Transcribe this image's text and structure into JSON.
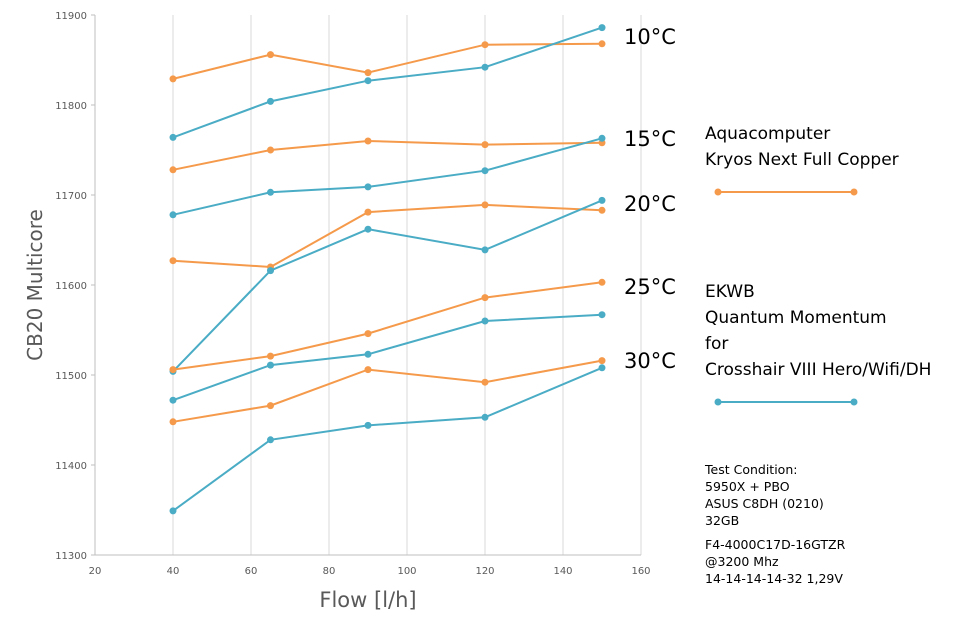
{
  "chart_data": {
    "type": "line",
    "title": "",
    "xlabel": "Flow [l/h]",
    "ylabel": "CB20 Multicore",
    "xlim": [
      20,
      160
    ],
    "ylim": [
      11300,
      11900
    ],
    "x_ticks": [
      "20",
      "40",
      "60",
      "80",
      "100",
      "120",
      "140",
      "160"
    ],
    "y_ticks": [
      "11300",
      "11400",
      "11500",
      "11600",
      "11700",
      "11800",
      "11900"
    ],
    "grid": "vertical",
    "x": [
      40,
      65,
      90,
      120,
      150
    ],
    "colors": {
      "aquacomputer": "#F59A4B",
      "ekwb": "#4AACC5"
    },
    "series": [
      {
        "name": "Aquacomputer 10°C",
        "group": "aquacomputer",
        "values": [
          11829,
          11856,
          11836,
          11867,
          11868
        ]
      },
      {
        "name": "EKWB 10°C",
        "group": "ekwb",
        "values": [
          11764,
          11804,
          11827,
          11842,
          11886
        ]
      },
      {
        "name": "Aquacomputer 15°C",
        "group": "aquacomputer",
        "values": [
          11728,
          11750,
          11760,
          11756,
          11758
        ]
      },
      {
        "name": "EKWB 15°C",
        "group": "ekwb",
        "values": [
          11678,
          11703,
          11709,
          11727,
          11763
        ]
      },
      {
        "name": "Aquacomputer 20°C",
        "group": "aquacomputer",
        "values": [
          11627,
          11620,
          11681,
          11689,
          11683
        ]
      },
      {
        "name": "EKWB 20°C",
        "group": "ekwb",
        "values": [
          11504,
          11616,
          11662,
          11639,
          11694
        ]
      },
      {
        "name": "Aquacomputer 25°C",
        "group": "aquacomputer",
        "values": [
          11506,
          11521,
          11546,
          11586,
          11603
        ]
      },
      {
        "name": "EKWB 25°C",
        "group": "ekwb",
        "values": [
          11472,
          11511,
          11523,
          11560,
          11567
        ]
      },
      {
        "name": "Aquacomputer 30°C",
        "group": "aquacomputer",
        "values": [
          11448,
          11466,
          11506,
          11492,
          11516
        ]
      },
      {
        "name": "EKWB 30°C",
        "group": "ekwb",
        "values": [
          11349,
          11428,
          11444,
          11453,
          11508
        ]
      }
    ],
    "annotations": {
      "temps": [
        "10°C",
        "15°C",
        "20°C",
        "25°C",
        "30°C"
      ],
      "legend_aqua": [
        "Aquacomputer",
        "Kryos Next Full Copper"
      ],
      "legend_ekwb": [
        "EKWB",
        "Quantum Momentum",
        "for",
        "Crosshair VIII Hero/Wifi/DH"
      ],
      "test_condition": [
        "Test Condition:",
        "5950X + PBO",
        "ASUS C8DH (0210)",
        "32GB",
        "F4-4000C17D-16GTZR",
        "@3200 Mhz",
        "14-14-14-14-32 1,29V"
      ]
    }
  }
}
